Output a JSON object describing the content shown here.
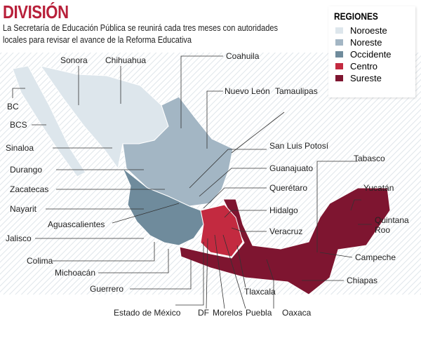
{
  "title": "DIVISIÓN",
  "subtitle_line1": "La Secretaría de Educación Pública se reunirá cada tres meses con autoridades",
  "subtitle_line2": "locales para revisar el avance de la Reforma Educativa",
  "legend": {
    "title": "REGIONES",
    "items": [
      {
        "label": "Noroeste",
        "color": "#dde6ec"
      },
      {
        "label": "Noreste",
        "color": "#a3b6c4"
      },
      {
        "label": "Occidente",
        "color": "#6f8b9c"
      },
      {
        "label": "Centro",
        "color": "#c32a40"
      },
      {
        "label": "Sureste",
        "color": "#7e1530"
      }
    ]
  },
  "states": {
    "sonora": "Sonora",
    "chihuahua": "Chihuahua",
    "coahuila": "Coahuila",
    "nuevoleon": "Nuevo León",
    "tamaulipas": "Tamaulipas",
    "bc": "BC",
    "bcs": "BCS",
    "sinaloa": "Sinaloa",
    "durango": "Durango",
    "zacatecas": "Zacatecas",
    "nayarit": "Nayarit",
    "aguascalientes": "Aguascalientes",
    "jalisco": "Jalisco",
    "colima": "Colima",
    "michoacan": "Michoacán",
    "guerrero": "Guerrero",
    "edomex": "Estado de México",
    "df": "DF",
    "morelos": "Morelos",
    "puebla": "Puebla",
    "tlaxcala": "Tlaxcala",
    "oaxaca": "Oaxaca",
    "chiapas": "Chiapas",
    "campeche": "Campeche",
    "quintanaroo1": "Quintana",
    "quintanaroo2": "Roo",
    "yucatan": "Yucatán",
    "tabasco": "Tabasco",
    "veracruz": "Veracruz",
    "hidalgo": "Hidalgo",
    "queretaro": "Querétaro",
    "guanajuato": "Guanajuato",
    "slp": "San Luis Potosí"
  }
}
